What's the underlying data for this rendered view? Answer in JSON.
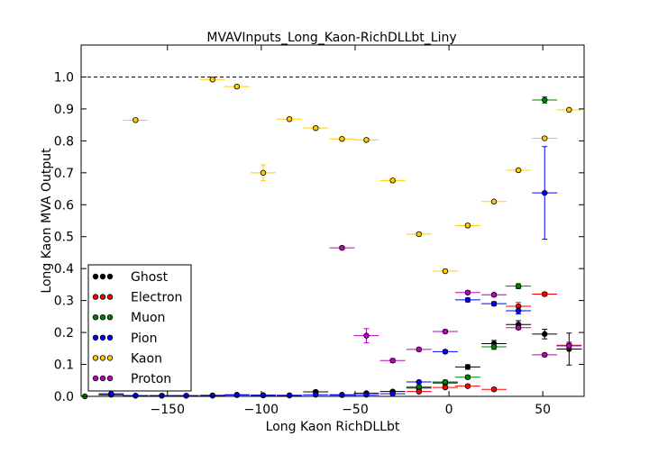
{
  "chart_data": {
    "type": "scatter",
    "title": "MVAVInputs_Long_Kaon-RichDLLbt_Liny",
    "xlabel": "Long Kaon RichDLLbt",
    "ylabel": "Long Kaon MVA Output",
    "xlim": [
      -196,
      72
    ],
    "ylim": [
      0.0,
      1.1
    ],
    "xticks": [
      -150,
      -100,
      -50,
      0,
      50
    ],
    "xtick_labels": [
      "−150",
      "−100",
      "−50",
      "0",
      "50"
    ],
    "yticks": [
      0.0,
      0.1,
      0.2,
      0.3,
      0.4,
      0.5,
      0.6,
      0.7,
      0.8,
      0.9,
      1.0
    ],
    "ytick_labels": [
      "0.0",
      "0.1",
      "0.2",
      "0.3",
      "0.4",
      "0.5",
      "0.6",
      "0.7",
      "0.8",
      "0.9",
      "1.0"
    ],
    "reference_line_y": 1.0,
    "grid": false,
    "legend_position": "bottom-left",
    "x_halfwidth": 6.7,
    "series": [
      {
        "name": "Ghost",
        "color": "#000000",
        "points": [
          {
            "x": -180,
            "y": 0.005,
            "yerr": 0
          },
          {
            "x": -167,
            "y": 0.002,
            "yerr": 0
          },
          {
            "x": -153,
            "y": 0.002,
            "yerr": 0
          },
          {
            "x": -140,
            "y": 0.002,
            "yerr": 0
          },
          {
            "x": -126,
            "y": 0.003,
            "yerr": 0
          },
          {
            "x": -113,
            "y": 0.005,
            "yerr": 0
          },
          {
            "x": -99,
            "y": 0.004,
            "yerr": 0
          },
          {
            "x": -85,
            "y": 0.003,
            "yerr": 0
          },
          {
            "x": -71,
            "y": 0.014,
            "yerr": 0.004
          },
          {
            "x": -57,
            "y": 0.005,
            "yerr": 0
          },
          {
            "x": -44,
            "y": 0.01,
            "yerr": 0.003
          },
          {
            "x": -30,
            "y": 0.015,
            "yerr": 0.003
          },
          {
            "x": -16,
            "y": 0.026,
            "yerr": 0.004
          },
          {
            "x": -2,
            "y": 0.042,
            "yerr": 0.005
          },
          {
            "x": 10,
            "y": 0.092,
            "yerr": 0.007
          },
          {
            "x": 24,
            "y": 0.165,
            "yerr": 0.01
          },
          {
            "x": 37,
            "y": 0.225,
            "yerr": 0.012
          },
          {
            "x": 51,
            "y": 0.195,
            "yerr": 0.015
          },
          {
            "x": 64,
            "y": 0.148,
            "yerr": 0.05
          }
        ]
      },
      {
        "name": "Electron",
        "color": "#ff0000",
        "points": [
          {
            "x": -16,
            "y": 0.015,
            "yerr": 0.003
          },
          {
            "x": -2,
            "y": 0.028,
            "yerr": 0.004
          },
          {
            "x": 10,
            "y": 0.032,
            "yerr": 0.004
          },
          {
            "x": 24,
            "y": 0.022,
            "yerr": 0.004
          },
          {
            "x": 37,
            "y": 0.282,
            "yerr": 0.012
          },
          {
            "x": 51,
            "y": 0.32,
            "yerr": 0.006
          },
          {
            "x": 64,
            "y": 0.16,
            "yerr": 0.01
          }
        ]
      },
      {
        "name": "Muon",
        "color": "#008000",
        "points": [
          {
            "x": -194,
            "y": 0.0,
            "yerr": 0
          },
          {
            "x": -16,
            "y": 0.03,
            "yerr": 0.004
          },
          {
            "x": -2,
            "y": 0.045,
            "yerr": 0.005
          },
          {
            "x": 10,
            "y": 0.06,
            "yerr": 0.005
          },
          {
            "x": 24,
            "y": 0.155,
            "yerr": 0.008
          },
          {
            "x": 37,
            "y": 0.345,
            "yerr": 0.008
          },
          {
            "x": 51,
            "y": 0.928,
            "yerr": 0.01
          }
        ]
      },
      {
        "name": "Pion",
        "color": "#0000ff",
        "points": [
          {
            "x": -180,
            "y": 0.008,
            "yerr": 0
          },
          {
            "x": -167,
            "y": 0.002,
            "yerr": 0
          },
          {
            "x": -153,
            "y": 0.002,
            "yerr": 0
          },
          {
            "x": -140,
            "y": 0.002,
            "yerr": 0
          },
          {
            "x": -126,
            "y": 0.002,
            "yerr": 0
          },
          {
            "x": -113,
            "y": 0.004,
            "yerr": 0
          },
          {
            "x": -99,
            "y": 0.003,
            "yerr": 0
          },
          {
            "x": -85,
            "y": 0.003,
            "yerr": 0
          },
          {
            "x": -71,
            "y": 0.005,
            "yerr": 0
          },
          {
            "x": -57,
            "y": 0.004,
            "yerr": 0
          },
          {
            "x": -44,
            "y": 0.005,
            "yerr": 0
          },
          {
            "x": -30,
            "y": 0.008,
            "yerr": 0
          },
          {
            "x": -16,
            "y": 0.045,
            "yerr": 0.003
          },
          {
            "x": -2,
            "y": 0.14,
            "yerr": 0.005
          },
          {
            "x": 10,
            "y": 0.302,
            "yerr": 0.006
          },
          {
            "x": 24,
            "y": 0.29,
            "yerr": 0.006
          },
          {
            "x": 37,
            "y": 0.268,
            "yerr": 0.01
          },
          {
            "x": 51,
            "y": 0.637,
            "yerr": 0.145
          }
        ]
      },
      {
        "name": "Kaon",
        "color": "#ffcc00",
        "points": [
          {
            "x": -167,
            "y": 0.865,
            "yerr": 0.005
          },
          {
            "x": -126,
            "y": 0.992,
            "yerr": 0.003
          },
          {
            "x": -113,
            "y": 0.97,
            "yerr": 0.004
          },
          {
            "x": -99,
            "y": 0.7,
            "yerr": 0.025
          },
          {
            "x": -85,
            "y": 0.868,
            "yerr": 0.005
          },
          {
            "x": -71,
            "y": 0.84,
            "yerr": 0.005
          },
          {
            "x": -57,
            "y": 0.806,
            "yerr": 0.005
          },
          {
            "x": -44,
            "y": 0.803,
            "yerr": 0.005
          },
          {
            "x": -30,
            "y": 0.676,
            "yerr": 0.005
          },
          {
            "x": -16,
            "y": 0.508,
            "yerr": 0.005
          },
          {
            "x": -2,
            "y": 0.392,
            "yerr": 0.005
          },
          {
            "x": 10,
            "y": 0.535,
            "yerr": 0.005
          },
          {
            "x": 24,
            "y": 0.61,
            "yerr": 0.005
          },
          {
            "x": 37,
            "y": 0.708,
            "yerr": 0.005
          },
          {
            "x": 51,
            "y": 0.808,
            "yerr": 0.005
          },
          {
            "x": 64,
            "y": 0.897,
            "yerr": 0.005
          }
        ]
      },
      {
        "name": "Proton",
        "color": "#bf00bf",
        "points": [
          {
            "x": -57,
            "y": 0.465,
            "yerr": 0.005
          },
          {
            "x": -44,
            "y": 0.19,
            "yerr": 0.022
          },
          {
            "x": -30,
            "y": 0.112,
            "yerr": 0.006
          },
          {
            "x": -16,
            "y": 0.147,
            "yerr": 0.005
          },
          {
            "x": -2,
            "y": 0.203,
            "yerr": 0.005
          },
          {
            "x": 10,
            "y": 0.325,
            "yerr": 0.005
          },
          {
            "x": 24,
            "y": 0.318,
            "yerr": 0.005
          },
          {
            "x": 37,
            "y": 0.215,
            "yerr": 0.005
          },
          {
            "x": 51,
            "y": 0.13,
            "yerr": 0.005
          },
          {
            "x": 64,
            "y": 0.158,
            "yerr": 0.008
          }
        ]
      }
    ]
  }
}
